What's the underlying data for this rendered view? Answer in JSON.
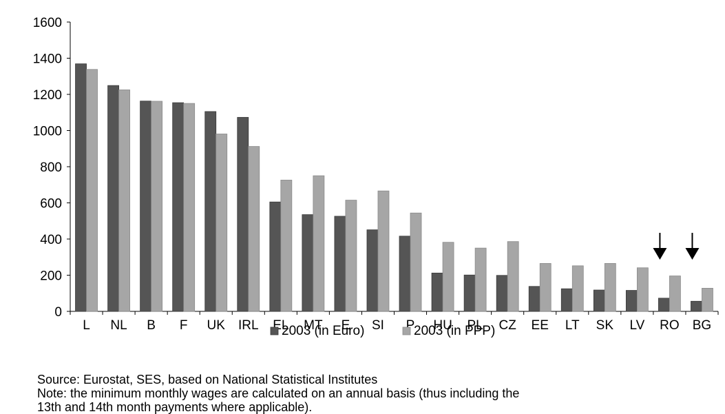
{
  "chart_data": {
    "type": "bar",
    "categories": [
      "L",
      "NL",
      "B",
      "F",
      "UK",
      "IRL",
      "EL",
      "MT",
      "E",
      "SI",
      "P",
      "HU",
      "PL",
      "CZ",
      "EE",
      "LT",
      "SK",
      "LV",
      "RO",
      "BG"
    ],
    "series": [
      {
        "name": "2003 (in Euro)",
        "color": "#555555",
        "values": [
          1369,
          1249,
          1163,
          1154,
          1105,
          1073,
          605,
          535,
          526,
          451,
          416,
          212,
          201,
          199,
          138,
          125,
          118,
          116,
          73,
          56
        ]
      },
      {
        "name": "2003 (in PPP)",
        "color": "#a6a6a6",
        "values": [
          1338,
          1225,
          1162,
          1150,
          981,
          912,
          726,
          750,
          615,
          666,
          544,
          382,
          350,
          386,
          265,
          252,
          265,
          241,
          196,
          128
        ]
      }
    ],
    "ylim": [
      0,
      1600
    ],
    "yticks": [
      0,
      200,
      400,
      600,
      800,
      1000,
      1200,
      1400,
      1600
    ],
    "legend_position": "bottom",
    "grid": false,
    "annotations": [
      {
        "type": "arrow-down",
        "category": "RO"
      },
      {
        "type": "arrow-down",
        "category": "BG"
      }
    ]
  },
  "notes": [
    "Source: Eurostat, SES, based on National Statistical Institutes",
    "Note: the minimum monthly wages are calculated on an annual basis (thus including the",
    "13th and 14th month payments where applicable)."
  ]
}
